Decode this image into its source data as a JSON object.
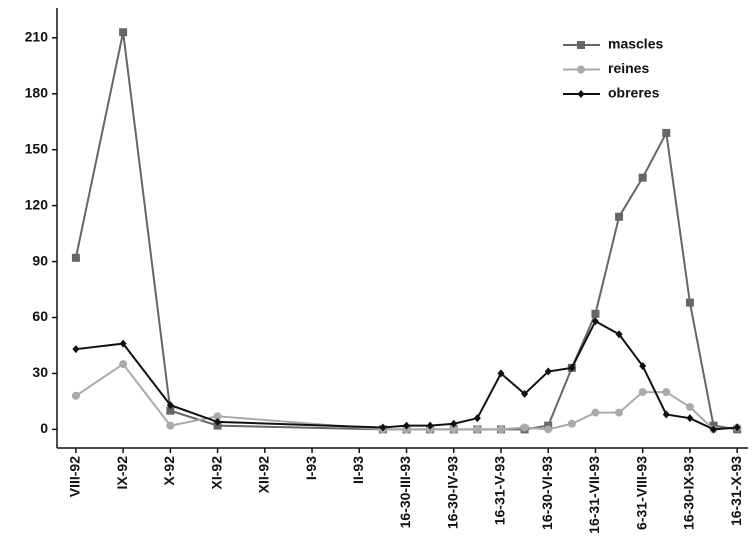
{
  "chart_data": {
    "type": "line",
    "x": [
      0,
      1,
      2,
      3,
      6.5,
      7,
      7.5,
      8,
      8.5,
      9,
      9.5,
      10,
      10.5,
      11,
      11.5,
      12,
      12.5,
      13,
      13.5,
      14
    ],
    "series": [
      {
        "name": "mascles",
        "color": "#666666",
        "marker": "square",
        "values": [
          92,
          213,
          10,
          2,
          0,
          0,
          0,
          0,
          0,
          0,
          0,
          2,
          33,
          62,
          114,
          135,
          159,
          68,
          2,
          0
        ]
      },
      {
        "name": "reines",
        "color": "#aaaaaa",
        "marker": "circle",
        "values": [
          18,
          35,
          2,
          7,
          0,
          0,
          0,
          0,
          0,
          0,
          1,
          0,
          3,
          9,
          9,
          20,
          20,
          12,
          0,
          1
        ]
      },
      {
        "name": "obreres",
        "color": "#111111",
        "marker": "diamond",
        "values": [
          43,
          46,
          13,
          4,
          1,
          2,
          2,
          3,
          6,
          30,
          19,
          31,
          33,
          58,
          51,
          34,
          8,
          6,
          0,
          1
        ]
      }
    ],
    "xlim": [
      -0.4,
      14.23
    ],
    "xticks": [
      {
        "value": 0,
        "label": "VIII-92"
      },
      {
        "value": 1,
        "label": "IX-92"
      },
      {
        "value": 2,
        "label": "X-92"
      },
      {
        "value": 3,
        "label": "XI-92"
      },
      {
        "value": 4,
        "label": "XII-92"
      },
      {
        "value": 5,
        "label": "I-93"
      },
      {
        "value": 6,
        "label": "II-93"
      },
      {
        "value": 7,
        "label": "16-30-III-93"
      },
      {
        "value": 8,
        "label": "16-30-IV-93"
      },
      {
        "value": 9,
        "label": "16-31-V-93"
      },
      {
        "value": 10,
        "label": "16-30-VI-93"
      },
      {
        "value": 11,
        "label": "16-31-VII-93"
      },
      {
        "value": 12,
        "label": "6-31-VIII-93"
      },
      {
        "value": 13,
        "label": "16-30-IX-93"
      },
      {
        "value": 14,
        "label": "16-31-X-93"
      }
    ],
    "ylim": [
      -10,
      226
    ],
    "yticks": [
      0,
      30,
      60,
      90,
      120,
      150,
      180,
      210
    ],
    "grid": false,
    "legend": "top-right"
  }
}
